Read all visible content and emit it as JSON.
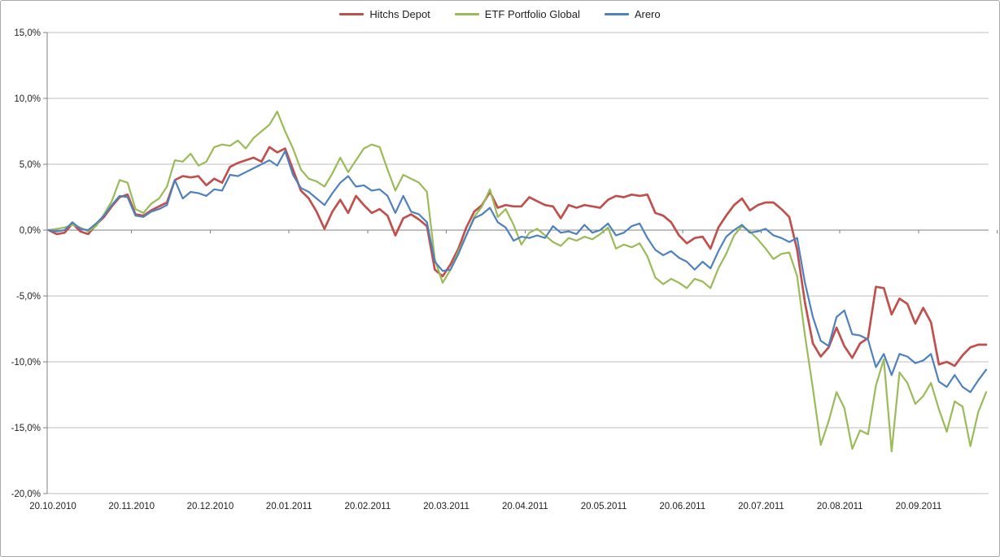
{
  "chart_data": {
    "type": "line",
    "title": "",
    "x_range": {
      "start": "20.10.2010",
      "end": "14.10.2011"
    },
    "sampling": "120 evenly spaced samples across the full date range",
    "x_tick_labels": [
      "20.10.2010",
      "20.11.2010",
      "20.12.2010",
      "20.01.2011",
      "20.02.2011",
      "20.03.2011",
      "20.04.2011",
      "20.05.2011",
      "20.06.2011",
      "20.07.2011",
      "20.08.2011",
      "20.09.2011"
    ],
    "y_tick_labels": [
      "15,0%",
      "10,0%",
      "5,0%",
      "0,0%",
      "-5,0%",
      "-10,0%",
      "-15,0%",
      "-20,0%"
    ],
    "ylabel": "",
    "xlabel": "",
    "ylim": [
      -20,
      15
    ],
    "y_step": 5,
    "grid": true,
    "legend_position": "top-center",
    "series": [
      {
        "name": "Hitchs Depot",
        "color": "#C0504D",
        "stroke_width": 2.7,
        "values": [
          0.0,
          -0.3,
          -0.2,
          0.5,
          -0.1,
          -0.3,
          0.4,
          1.0,
          1.8,
          2.5,
          2.7,
          1.2,
          1.1,
          1.5,
          1.8,
          2.1,
          3.8,
          4.1,
          4.0,
          4.1,
          3.4,
          3.9,
          3.6,
          4.8,
          5.1,
          5.3,
          5.5,
          5.2,
          6.3,
          5.9,
          6.2,
          4.6,
          3.0,
          2.4,
          1.4,
          0.1,
          1.4,
          2.3,
          1.3,
          2.6,
          1.9,
          1.3,
          1.6,
          1.1,
          -0.4,
          0.9,
          1.2,
          0.8,
          0.3,
          -3.0,
          -3.5,
          -2.6,
          -1.4,
          0.2,
          1.4,
          1.9,
          2.9,
          1.7,
          1.9,
          1.8,
          1.8,
          2.5,
          2.2,
          1.9,
          1.8,
          0.9,
          1.9,
          1.7,
          1.9,
          1.8,
          1.7,
          2.3,
          2.6,
          2.5,
          2.7,
          2.6,
          2.7,
          1.3,
          1.1,
          0.6,
          -0.4,
          -1.0,
          -0.6,
          -0.5,
          -1.4,
          0.2,
          1.1,
          1.9,
          2.4,
          1.5,
          1.9,
          2.1,
          2.1,
          1.6,
          1.0,
          -1.5,
          -5.5,
          -8.6,
          -9.6,
          -8.9,
          -7.4,
          -8.8,
          -9.7,
          -8.6,
          -8.2,
          -4.3,
          -4.4,
          -6.4,
          -5.2,
          -5.6,
          -7.1,
          -5.9,
          -7.0,
          -10.2,
          -10.0,
          -10.3,
          -9.5,
          -8.9,
          -8.7,
          -8.7
        ]
      },
      {
        "name": "ETF Portfolio Global",
        "color": "#9BBB59",
        "stroke_width": 2.2,
        "values": [
          0.0,
          0.1,
          0.2,
          0.4,
          0.2,
          -0.1,
          0.3,
          1.2,
          2.2,
          3.8,
          3.6,
          1.6,
          1.3,
          2.0,
          2.4,
          3.3,
          5.3,
          5.2,
          5.8,
          4.9,
          5.2,
          6.3,
          6.5,
          6.4,
          6.8,
          6.2,
          7.0,
          7.5,
          8.0,
          9.0,
          7.5,
          6.2,
          4.6,
          3.9,
          3.7,
          3.3,
          4.3,
          5.5,
          4.4,
          5.3,
          6.2,
          6.5,
          6.3,
          4.6,
          3.0,
          4.2,
          3.9,
          3.6,
          2.9,
          -2.2,
          -4.0,
          -3.0,
          -1.6,
          -0.4,
          1.0,
          1.8,
          3.1,
          1.0,
          1.6,
          0.4,
          -1.1,
          -0.2,
          0.1,
          -0.4,
          -0.9,
          -1.2,
          -0.6,
          -0.8,
          -0.5,
          -0.7,
          -0.3,
          0.2,
          -1.4,
          -1.1,
          -1.3,
          -1.0,
          -2.0,
          -3.6,
          -4.1,
          -3.7,
          -4.0,
          -4.4,
          -3.7,
          -3.9,
          -4.4,
          -2.9,
          -1.8,
          -0.4,
          0.3,
          -0.1,
          -0.7,
          -1.4,
          -2.2,
          -1.8,
          -1.7,
          -3.5,
          -8.0,
          -12.0,
          -16.3,
          -14.5,
          -12.3,
          -13.5,
          -16.6,
          -15.2,
          -15.5,
          -11.8,
          -9.8,
          -16.8,
          -10.8,
          -11.6,
          -13.2,
          -12.6,
          -11.6,
          -13.6,
          -15.3,
          -13.0,
          -13.4,
          -16.4,
          -13.8,
          -12.3
        ]
      },
      {
        "name": "Arero",
        "color": "#4F81BD",
        "stroke_width": 2.2,
        "values": [
          0.0,
          -0.1,
          0.0,
          0.6,
          0.1,
          0.0,
          0.5,
          1.1,
          1.9,
          2.6,
          2.5,
          1.1,
          1.0,
          1.4,
          1.6,
          1.9,
          3.8,
          2.4,
          2.9,
          2.8,
          2.6,
          3.1,
          3.0,
          4.2,
          4.1,
          4.4,
          4.7,
          5.0,
          5.3,
          4.9,
          6.0,
          4.2,
          3.2,
          2.9,
          2.4,
          1.9,
          2.8,
          3.6,
          4.1,
          3.3,
          3.4,
          3.0,
          3.1,
          2.6,
          1.3,
          2.6,
          1.4,
          1.2,
          0.6,
          -2.4,
          -3.1,
          -3.0,
          -1.8,
          -0.4,
          0.9,
          1.2,
          1.7,
          0.6,
          0.2,
          -0.8,
          -0.5,
          -0.6,
          -0.4,
          -0.6,
          0.3,
          -0.2,
          -0.1,
          -0.3,
          0.4,
          -0.2,
          0.0,
          0.5,
          -0.4,
          -0.2,
          0.3,
          0.5,
          -0.6,
          -1.5,
          -1.9,
          -1.6,
          -2.1,
          -2.4,
          -3.0,
          -2.4,
          -2.9,
          -1.6,
          -0.5,
          0.0,
          0.4,
          -0.2,
          -0.1,
          0.1,
          -0.4,
          -0.6,
          -0.9,
          -0.6,
          -4.0,
          -6.6,
          -8.4,
          -8.8,
          -6.6,
          -6.1,
          -7.9,
          -8.0,
          -8.3,
          -10.4,
          -9.4,
          -11.0,
          -9.4,
          -9.6,
          -10.1,
          -9.9,
          -9.4,
          -11.5,
          -11.9,
          -11.0,
          -11.9,
          -12.3,
          -11.4,
          -10.6
        ]
      }
    ]
  },
  "colors": {
    "background": "#ffffff",
    "gridline": "#bfbfbf",
    "axis_line": "#808080",
    "tick_text": "#1f1f1f",
    "frame_border": "#a9a9a9"
  }
}
